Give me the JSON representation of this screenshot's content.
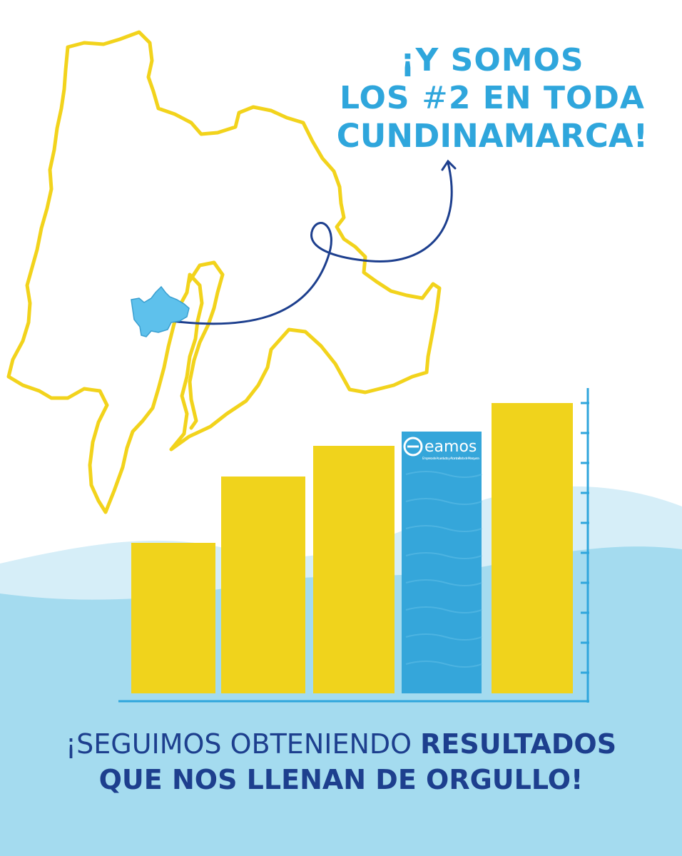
{
  "headline": {
    "line1": "¡Y SOMOS",
    "line2_prefix": "LOS ",
    "line2_hash": "#",
    "line2_suffix": "2 EN TODA",
    "line3": "CUNDINAMARCA!"
  },
  "footer": {
    "line1_light": "¡SEGUIMOS OBTENIENDO ",
    "line1_bold": "RESULTADOS",
    "line2": "QUE NOS LLENAN DE ORGULLO!"
  },
  "logo": {
    "name": "eamos",
    "tagline": "Empresa de Acueducto y Alcantarillado de Mosquera"
  },
  "chart_data": {
    "type": "bar",
    "values": [
      211,
      304,
      347,
      367,
      407
    ],
    "highlight_index": 3,
    "colors": {
      "bar": "#f0d31c",
      "highlight": "#35a6da",
      "axis": "#2fa6dc"
    }
  },
  "colors": {
    "map_outline": "#f2d31c",
    "municipality": "#5ec1ec",
    "arrow": "#1d3f8e",
    "wave_light": "#d6eef8",
    "wave_main": "#a4dbef"
  },
  "icons": [
    "cundinamarca-map-outline",
    "mosquera-municipality-icon",
    "curved-arrow-icon",
    "eamos-logo-icon"
  ]
}
